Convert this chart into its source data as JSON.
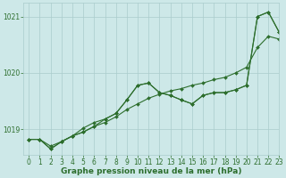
{
  "title": "Graphe pression niveau de la mer (hPa)",
  "bg_color": "#cde8e8",
  "grid_color": "#aacccc",
  "line_color": "#2d6e2d",
  "xlim": [
    -0.5,
    23
  ],
  "ylim": [
    1018.55,
    1021.25
  ],
  "yticks": [
    1019,
    1020,
    1021
  ],
  "xticks": [
    0,
    1,
    2,
    3,
    4,
    5,
    6,
    7,
    8,
    9,
    10,
    11,
    12,
    13,
    14,
    15,
    16,
    17,
    18,
    19,
    20,
    21,
    22,
    23
  ],
  "series": {
    "line1": {
      "x": [
        0,
        1,
        2,
        3,
        4,
        5,
        6,
        7,
        8,
        9,
        10,
        11,
        12,
        13,
        14,
        15,
        16,
        17,
        18,
        19,
        20,
        21,
        22,
        23
      ],
      "y": [
        1018.82,
        1018.82,
        1018.7,
        1018.78,
        1018.88,
        1018.95,
        1019.05,
        1019.12,
        1019.22,
        1019.35,
        1019.45,
        1019.55,
        1019.62,
        1019.68,
        1019.72,
        1019.78,
        1019.82,
        1019.88,
        1019.92,
        1020.0,
        1020.1,
        1020.45,
        1020.65,
        1020.6
      ]
    },
    "line2": {
      "x": [
        0,
        1,
        2,
        3,
        4,
        5,
        6,
        7,
        8,
        9,
        10,
        11,
        12,
        13,
        14,
        15,
        16,
        17,
        18,
        19,
        20,
        21,
        22,
        23
      ],
      "y": [
        1018.82,
        1018.82,
        1018.65,
        1018.78,
        1018.88,
        1019.02,
        1019.12,
        1019.18,
        1019.28,
        1019.52,
        1019.78,
        1019.82,
        1019.65,
        1019.6,
        1019.52,
        1019.45,
        1019.6,
        1019.65,
        1019.65,
        1019.7,
        1019.78,
        1021.0,
        1021.08,
        1020.72
      ]
    },
    "line3": {
      "x": [
        0,
        1,
        2,
        3,
        4,
        5,
        6,
        7,
        8,
        9,
        10,
        11,
        12,
        13,
        14,
        15,
        16,
        17,
        18,
        19,
        20,
        21,
        22,
        23
      ],
      "y": [
        1018.82,
        1018.82,
        1018.65,
        1018.78,
        1018.88,
        1018.95,
        1019.05,
        1019.18,
        1019.28,
        1019.52,
        1019.78,
        1019.82,
        1019.65,
        1019.6,
        1019.52,
        1019.45,
        1019.6,
        1019.65,
        1019.65,
        1019.7,
        1019.78,
        1021.0,
        1021.08,
        1020.72
      ]
    }
  },
  "marker": "D",
  "markersize": 2.0,
  "linewidth": 0.8,
  "title_fontsize": 6.5,
  "tick_fontsize": 5.5
}
